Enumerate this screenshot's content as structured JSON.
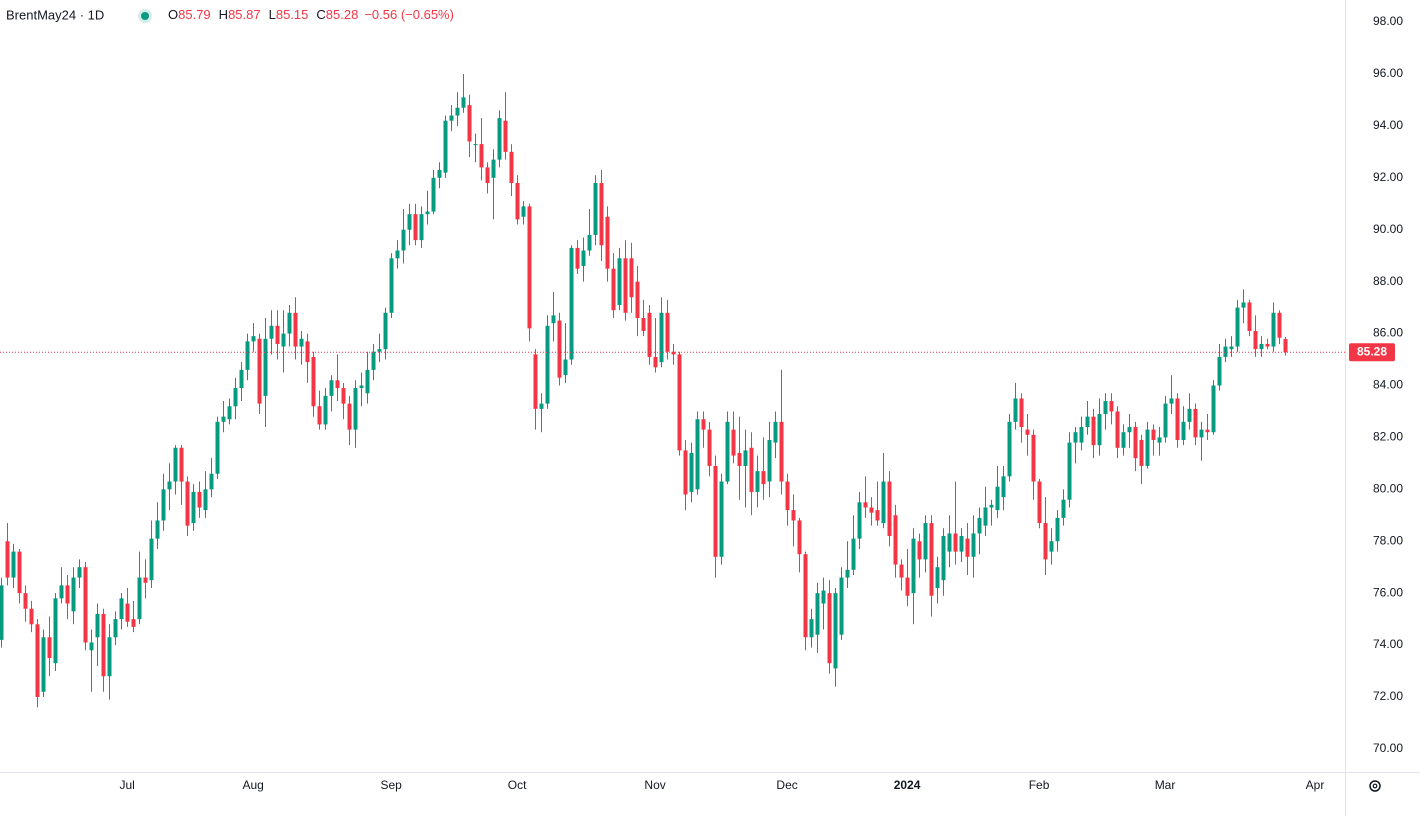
{
  "header": {
    "symbol": "BrentMay24 · 1D",
    "keys": [
      "O",
      "H",
      "L",
      "C"
    ],
    "change": "−0.56 (−0.65%)"
  },
  "chart_data": {
    "type": "candlestick",
    "up_color": "#089981",
    "down_color": "#f23645",
    "grid": false,
    "xlim": [
      -0.2,
      224
    ],
    "ylim": [
      69.11,
      98.85
    ],
    "xticks": [
      {
        "value": 21,
        "label": "Jul"
      },
      {
        "value": 42,
        "label": "Aug"
      },
      {
        "value": 65,
        "label": "Sep"
      },
      {
        "value": 86,
        "label": "Oct"
      },
      {
        "value": 109,
        "label": "Nov"
      },
      {
        "value": 131,
        "label": "Dec"
      },
      {
        "value": 151,
        "label": "2024"
      },
      {
        "value": 173,
        "label": "Feb"
      },
      {
        "value": 194,
        "label": "Mar"
      },
      {
        "value": 219,
        "label": "Apr"
      }
    ],
    "yticks": [
      {
        "value": 70,
        "label": "70.00"
      },
      {
        "value": 72,
        "label": "72.00"
      },
      {
        "value": 74,
        "label": "74.00"
      },
      {
        "value": 76,
        "label": "76.00"
      },
      {
        "value": 78,
        "label": "78.00"
      },
      {
        "value": 80,
        "label": "80.00"
      },
      {
        "value": 82,
        "label": "82.00"
      },
      {
        "value": 84,
        "label": "84.00"
      },
      {
        "value": 86,
        "label": "86.00"
      },
      {
        "value": 88,
        "label": "88.00"
      },
      {
        "value": 90,
        "label": "90.00"
      },
      {
        "value": 92,
        "label": "92.00"
      },
      {
        "value": 94,
        "label": "94.00"
      },
      {
        "value": 96,
        "label": "96.00"
      },
      {
        "value": 98,
        "label": "98.00"
      }
    ],
    "candles": [
      [
        74.2,
        76.6,
        73.9,
        76.3
      ],
      [
        78.0,
        78.7,
        76.3,
        76.6
      ],
      [
        76.6,
        77.9,
        76.2,
        77.6
      ],
      [
        77.6,
        77.7,
        75.6,
        76.0
      ],
      [
        76.0,
        76.3,
        74.9,
        75.4
      ],
      [
        75.4,
        75.7,
        74.5,
        74.8
      ],
      [
        74.8,
        75.0,
        71.6,
        72.0
      ],
      [
        72.2,
        74.6,
        72.0,
        74.3
      ],
      [
        74.3,
        75.1,
        72.8,
        73.5
      ],
      [
        73.3,
        76.0,
        73.0,
        75.8
      ],
      [
        75.8,
        77.0,
        75.6,
        76.3
      ],
      [
        76.3,
        76.7,
        75.0,
        75.6
      ],
      [
        75.3,
        77.0,
        74.8,
        76.6
      ],
      [
        76.6,
        77.3,
        76.2,
        77.0
      ],
      [
        77.0,
        77.2,
        73.8,
        74.1
      ],
      [
        73.8,
        74.6,
        72.2,
        74.1
      ],
      [
        74.3,
        75.6,
        73.2,
        75.2
      ],
      [
        75.2,
        75.4,
        72.2,
        72.8
      ],
      [
        72.8,
        74.8,
        71.9,
        74.3
      ],
      [
        74.3,
        75.3,
        74.0,
        75.0
      ],
      [
        75.0,
        76.0,
        74.6,
        75.8
      ],
      [
        75.6,
        76.2,
        74.7,
        74.9
      ],
      [
        75.0,
        75.7,
        74.5,
        74.7
      ],
      [
        75.0,
        77.6,
        74.8,
        76.6
      ],
      [
        76.6,
        77.3,
        75.8,
        76.4
      ],
      [
        76.5,
        78.8,
        76.2,
        78.1
      ],
      [
        78.1,
        79.5,
        77.7,
        78.8
      ],
      [
        78.8,
        80.6,
        78.4,
        80.0
      ],
      [
        80.0,
        81.0,
        79.2,
        80.3
      ],
      [
        80.3,
        81.7,
        79.8,
        81.6
      ],
      [
        81.6,
        81.7,
        79.4,
        80.3
      ],
      [
        80.3,
        80.5,
        78.2,
        78.6
      ],
      [
        78.7,
        80.2,
        78.4,
        79.9
      ],
      [
        79.9,
        80.3,
        78.9,
        79.3
      ],
      [
        79.2,
        80.7,
        78.9,
        80.0
      ],
      [
        80.0,
        81.2,
        79.7,
        80.6
      ],
      [
        80.6,
        82.8,
        80.4,
        82.6
      ],
      [
        82.6,
        83.4,
        82.2,
        82.8
      ],
      [
        82.7,
        83.5,
        82.5,
        83.2
      ],
      [
        83.2,
        84.3,
        82.7,
        83.9
      ],
      [
        83.9,
        84.9,
        83.4,
        84.6
      ],
      [
        84.6,
        86.0,
        84.2,
        85.7
      ],
      [
        85.7,
        86.4,
        85.3,
        85.9
      ],
      [
        85.8,
        86.0,
        82.9,
        83.3
      ],
      [
        83.6,
        86.6,
        82.4,
        85.8
      ],
      [
        85.8,
        86.9,
        85.2,
        86.3
      ],
      [
        86.3,
        86.9,
        85.0,
        85.6
      ],
      [
        85.5,
        86.9,
        84.5,
        86.0
      ],
      [
        86.0,
        87.1,
        85.5,
        86.8
      ],
      [
        86.8,
        87.4,
        85.0,
        85.5
      ],
      [
        85.5,
        86.1,
        84.8,
        85.8
      ],
      [
        85.7,
        86.0,
        84.1,
        84.9
      ],
      [
        85.1,
        85.3,
        82.8,
        83.2
      ],
      [
        83.2,
        83.8,
        82.3,
        82.5
      ],
      [
        82.5,
        83.9,
        82.3,
        83.6
      ],
      [
        83.6,
        84.4,
        83.0,
        84.2
      ],
      [
        84.2,
        85.2,
        83.4,
        83.9
      ],
      [
        83.9,
        84.1,
        82.7,
        83.3
      ],
      [
        83.3,
        83.6,
        81.7,
        82.3
      ],
      [
        82.3,
        84.2,
        81.6,
        83.9
      ],
      [
        83.9,
        84.5,
        83.2,
        84.0
      ],
      [
        83.7,
        85.3,
        83.3,
        84.6
      ],
      [
        84.6,
        85.6,
        84.2,
        85.3
      ],
      [
        85.3,
        86.0,
        84.9,
        85.4
      ],
      [
        85.4,
        87.0,
        85.0,
        86.8
      ],
      [
        86.8,
        89.1,
        86.6,
        88.9
      ],
      [
        88.9,
        89.6,
        88.5,
        89.2
      ],
      [
        89.2,
        90.8,
        88.7,
        90.0
      ],
      [
        90.0,
        91.0,
        89.4,
        90.6
      ],
      [
        90.6,
        91.0,
        89.4,
        89.6
      ],
      [
        89.6,
        90.9,
        89.3,
        90.6
      ],
      [
        90.6,
        91.5,
        90.2,
        90.7
      ],
      [
        90.7,
        92.3,
        90.6,
        92.0
      ],
      [
        92.0,
        92.6,
        91.6,
        92.3
      ],
      [
        92.2,
        94.4,
        92.0,
        94.2
      ],
      [
        94.2,
        94.8,
        93.8,
        94.4
      ],
      [
        94.4,
        95.3,
        94.0,
        94.7
      ],
      [
        94.7,
        96.0,
        94.5,
        95.1
      ],
      [
        94.8,
        95.2,
        92.8,
        93.4
      ],
      [
        93.3,
        93.7,
        92.6,
        93.3
      ],
      [
        93.3,
        94.3,
        91.9,
        92.4
      ],
      [
        92.4,
        92.6,
        91.4,
        91.8
      ],
      [
        92.0,
        93.1,
        90.4,
        92.7
      ],
      [
        92.7,
        94.6,
        92.4,
        94.3
      ],
      [
        94.2,
        95.3,
        92.7,
        93.0
      ],
      [
        93.0,
        93.3,
        91.3,
        91.8
      ],
      [
        91.8,
        92.1,
        90.2,
        90.4
      ],
      [
        90.5,
        91.1,
        90.2,
        90.9
      ],
      [
        90.9,
        91.0,
        85.7,
        86.2
      ],
      [
        85.2,
        85.4,
        82.3,
        83.1
      ],
      [
        83.1,
        83.7,
        82.2,
        83.3
      ],
      [
        83.3,
        86.7,
        83.1,
        86.3
      ],
      [
        86.4,
        87.6,
        85.7,
        86.7
      ],
      [
        86.5,
        86.8,
        84.0,
        84.3
      ],
      [
        84.4,
        86.4,
        84.1,
        85.0
      ],
      [
        85.0,
        89.4,
        84.8,
        89.3
      ],
      [
        89.3,
        89.6,
        88.3,
        88.5
      ],
      [
        88.6,
        89.7,
        88.0,
        89.2
      ],
      [
        89.2,
        90.8,
        89.0,
        89.8
      ],
      [
        89.8,
        92.1,
        89.4,
        91.8
      ],
      [
        91.8,
        92.3,
        88.8,
        89.4
      ],
      [
        90.5,
        90.9,
        88.0,
        88.5
      ],
      [
        88.5,
        89.1,
        86.6,
        86.9
      ],
      [
        87.1,
        89.3,
        86.9,
        88.9
      ],
      [
        88.9,
        89.6,
        86.5,
        86.8
      ],
      [
        88.9,
        89.5,
        86.8,
        87.4
      ],
      [
        88.0,
        88.6,
        85.9,
        86.6
      ],
      [
        86.6,
        87.3,
        85.9,
        86.1
      ],
      [
        86.8,
        87.1,
        84.8,
        85.1
      ],
      [
        85.1,
        86.6,
        84.5,
        84.7
      ],
      [
        84.9,
        87.4,
        84.7,
        86.8
      ],
      [
        86.8,
        87.3,
        85.0,
        85.3
      ],
      [
        85.3,
        85.6,
        84.8,
        85.2
      ],
      [
        85.2,
        85.3,
        81.3,
        81.5
      ],
      [
        81.5,
        81.9,
        79.2,
        79.8
      ],
      [
        79.9,
        81.8,
        79.5,
        81.4
      ],
      [
        80.0,
        83.0,
        79.8,
        82.7
      ],
      [
        82.7,
        83.0,
        81.6,
        82.3
      ],
      [
        82.3,
        82.6,
        80.5,
        80.9
      ],
      [
        80.9,
        81.3,
        76.6,
        77.4
      ],
      [
        77.4,
        80.6,
        77.1,
        80.3
      ],
      [
        80.3,
        83.0,
        80.2,
        82.6
      ],
      [
        82.3,
        83.0,
        81.0,
        81.3
      ],
      [
        81.4,
        82.8,
        79.6,
        80.9
      ],
      [
        80.9,
        82.3,
        79.3,
        81.5
      ],
      [
        81.6,
        82.2,
        79.0,
        79.9
      ],
      [
        79.9,
        81.3,
        79.3,
        80.7
      ],
      [
        80.7,
        82.0,
        79.6,
        80.2
      ],
      [
        80.3,
        82.6,
        79.7,
        81.9
      ],
      [
        81.8,
        83.0,
        81.2,
        82.6
      ],
      [
        82.6,
        84.6,
        79.8,
        80.3
      ],
      [
        80.3,
        80.6,
        78.6,
        79.2
      ],
      [
        79.2,
        79.8,
        77.8,
        78.8
      ],
      [
        78.8,
        78.9,
        76.8,
        77.5
      ],
      [
        77.5,
        77.6,
        73.8,
        74.3
      ],
      [
        74.3,
        75.4,
        73.9,
        75.0
      ],
      [
        74.4,
        76.4,
        73.7,
        76.0
      ],
      [
        75.6,
        76.6,
        74.6,
        76.1
      ],
      [
        76.0,
        76.5,
        72.9,
        73.3
      ],
      [
        73.1,
        76.2,
        72.4,
        76.0
      ],
      [
        74.4,
        77.0,
        74.2,
        76.6
      ],
      [
        76.6,
        78.0,
        76.2,
        76.9
      ],
      [
        76.9,
        79.0,
        76.7,
        78.1
      ],
      [
        78.1,
        79.9,
        77.7,
        79.5
      ],
      [
        79.5,
        80.5,
        78.9,
        79.3
      ],
      [
        79.3,
        79.7,
        78.6,
        79.1
      ],
      [
        79.2,
        80.3,
        78.6,
        78.8
      ],
      [
        78.7,
        81.4,
        78.5,
        80.3
      ],
      [
        80.3,
        80.7,
        77.8,
        78.2
      ],
      [
        79.0,
        79.4,
        76.6,
        77.1
      ],
      [
        77.1,
        77.3,
        76.1,
        76.6
      ],
      [
        76.6,
        77.7,
        75.5,
        75.9
      ],
      [
        76.0,
        78.5,
        74.8,
        78.1
      ],
      [
        78.0,
        78.3,
        76.6,
        77.3
      ],
      [
        77.3,
        79.0,
        76.8,
        78.7
      ],
      [
        78.7,
        79.0,
        75.1,
        75.9
      ],
      [
        76.2,
        77.4,
        75.6,
        77.0
      ],
      [
        76.5,
        78.5,
        75.9,
        78.2
      ],
      [
        77.6,
        79.0,
        77.0,
        78.3
      ],
      [
        78.3,
        80.3,
        77.1,
        77.6
      ],
      [
        77.6,
        78.5,
        77.2,
        78.2
      ],
      [
        78.1,
        78.7,
        76.7,
        77.4
      ],
      [
        77.4,
        79.0,
        76.6,
        78.3
      ],
      [
        78.3,
        79.3,
        77.5,
        78.9
      ],
      [
        78.6,
        80.1,
        78.2,
        79.3
      ],
      [
        79.3,
        79.6,
        78.6,
        79.4
      ],
      [
        79.2,
        80.9,
        78.9,
        80.1
      ],
      [
        79.7,
        80.9,
        79.2,
        80.5
      ],
      [
        80.5,
        82.9,
        80.3,
        82.6
      ],
      [
        82.6,
        84.1,
        82.3,
        83.5
      ],
      [
        83.5,
        83.7,
        81.8,
        82.4
      ],
      [
        82.3,
        82.9,
        81.3,
        82.1
      ],
      [
        82.1,
        82.3,
        79.6,
        80.3
      ],
      [
        80.3,
        80.4,
        78.5,
        78.7
      ],
      [
        78.7,
        79.7,
        76.7,
        77.3
      ],
      [
        77.6,
        78.5,
        77.1,
        78.0
      ],
      [
        78.0,
        79.2,
        77.6,
        78.9
      ],
      [
        78.9,
        80.0,
        78.6,
        79.6
      ],
      [
        79.6,
        82.2,
        79.3,
        81.8
      ],
      [
        81.8,
        82.4,
        81.0,
        82.2
      ],
      [
        81.8,
        82.8,
        81.5,
        82.4
      ],
      [
        82.4,
        83.4,
        82.1,
        82.8
      ],
      [
        82.8,
        83.1,
        81.2,
        81.7
      ],
      [
        81.7,
        83.5,
        81.3,
        82.9
      ],
      [
        82.9,
        83.7,
        82.3,
        83.4
      ],
      [
        83.4,
        83.7,
        82.5,
        83.0
      ],
      [
        83.0,
        83.2,
        81.2,
        81.6
      ],
      [
        81.6,
        82.5,
        81.3,
        82.2
      ],
      [
        82.2,
        82.9,
        81.6,
        82.4
      ],
      [
        82.4,
        82.6,
        80.7,
        81.2
      ],
      [
        81.9,
        82.1,
        80.2,
        80.9
      ],
      [
        80.9,
        82.6,
        80.8,
        82.3
      ],
      [
        82.3,
        82.5,
        81.3,
        81.9
      ],
      [
        81.8,
        82.4,
        81.3,
        82.0
      ],
      [
        82.0,
        83.6,
        81.8,
        83.3
      ],
      [
        83.3,
        84.4,
        82.9,
        83.5
      ],
      [
        83.5,
        83.7,
        81.6,
        81.9
      ],
      [
        81.9,
        83.2,
        81.7,
        82.6
      ],
      [
        82.6,
        83.7,
        82.3,
        83.1
      ],
      [
        83.1,
        83.3,
        81.7,
        82.0
      ],
      [
        82.0,
        82.6,
        81.1,
        82.3
      ],
      [
        82.3,
        82.9,
        81.9,
        82.2
      ],
      [
        82.2,
        84.2,
        82.1,
        84.0
      ],
      [
        84.0,
        85.6,
        83.8,
        85.1
      ],
      [
        85.1,
        85.8,
        84.9,
        85.5
      ],
      [
        85.4,
        85.9,
        85.1,
        85.5
      ],
      [
        85.5,
        87.3,
        85.3,
        87.0
      ],
      [
        87.0,
        87.7,
        86.4,
        87.2
      ],
      [
        87.2,
        87.3,
        85.9,
        86.1
      ],
      [
        86.1,
        86.7,
        85.1,
        85.4
      ],
      [
        85.4,
        85.9,
        85.1,
        85.6
      ],
      [
        85.6,
        85.8,
        85.4,
        85.5
      ],
      [
        85.5,
        87.2,
        85.3,
        86.8
      ],
      [
        86.8,
        86.9,
        85.6,
        85.84
      ],
      [
        85.79,
        85.87,
        85.15,
        85.28
      ]
    ]
  }
}
